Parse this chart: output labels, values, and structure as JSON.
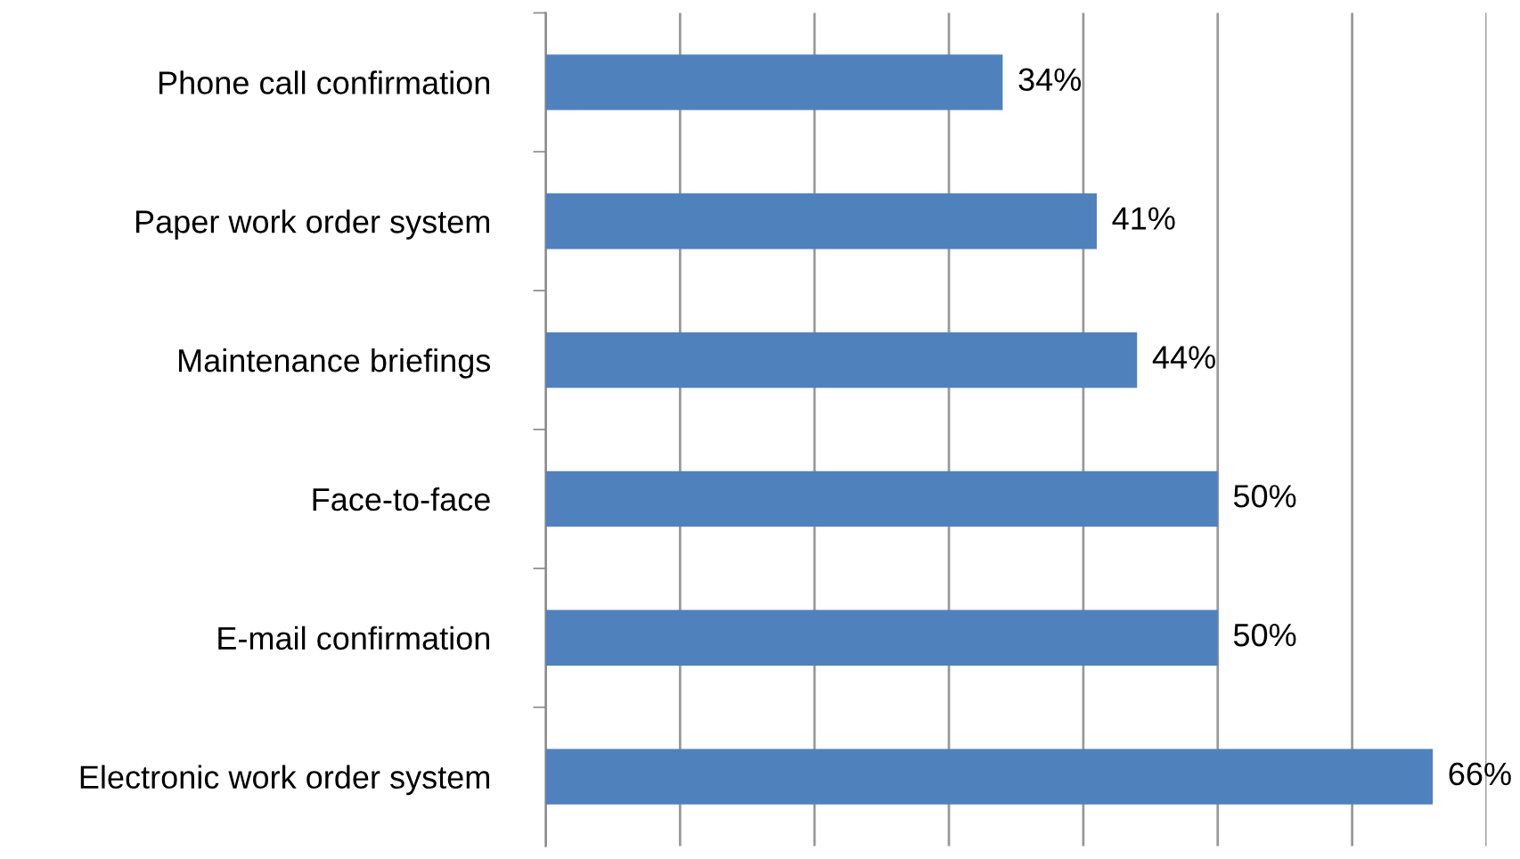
{
  "chart_data": {
    "type": "bar",
    "orientation": "horizontal",
    "categories": [
      "Phone call confirmation",
      "Paper work order system",
      "Maintenance briefings",
      "Face-to-face",
      "E-mail confirmation",
      "Electronic work order system"
    ],
    "values": [
      34,
      41,
      44,
      50,
      50,
      66
    ],
    "value_labels": [
      "34%",
      "41%",
      "44%",
      "50%",
      "50%",
      "66%"
    ],
    "color": "#4f81bd",
    "xlim": [
      0,
      70
    ],
    "xticks": [
      {
        "value": 0,
        "label": null
      },
      {
        "value": 10,
        "label": null
      },
      {
        "value": 20,
        "label": null
      },
      {
        "value": 30,
        "label": null
      },
      {
        "value": 40,
        "label": null
      },
      {
        "value": 50,
        "label": null
      },
      {
        "value": 60,
        "label": null
      },
      {
        "value": 70,
        "label": null
      }
    ],
    "grid": "x",
    "tick_labels": "y"
  }
}
